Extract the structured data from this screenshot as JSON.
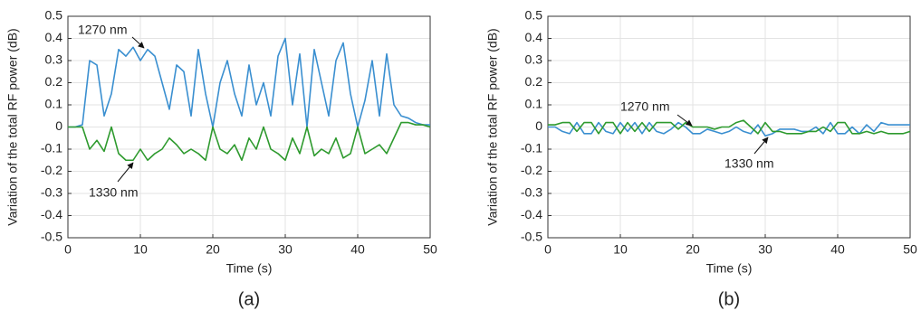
{
  "chart_data": [
    {
      "type": "line",
      "subtitle": "(a)",
      "x_label": "Time (s)",
      "y_label": "Variation of the total RF power (dB)",
      "x": [
        0,
        1,
        2,
        3,
        4,
        5,
        6,
        7,
        8,
        9,
        10,
        11,
        12,
        13,
        14,
        15,
        16,
        17,
        18,
        19,
        20,
        21,
        22,
        23,
        24,
        25,
        26,
        27,
        28,
        29,
        30,
        31,
        32,
        33,
        34,
        35,
        36,
        37,
        38,
        39,
        40,
        41,
        42,
        43,
        44,
        45,
        46,
        47,
        48,
        49,
        50
      ],
      "series": [
        {
          "color": "#3a8fd0",
          "values": [
            0,
            0,
            0.01,
            0.3,
            0.28,
            0.05,
            0.15,
            0.35,
            0.32,
            0.36,
            0.3,
            0.35,
            0.32,
            0.2,
            0.08,
            0.28,
            0.25,
            0.05,
            0.35,
            0.15,
            0.0,
            0.2,
            0.3,
            0.15,
            0.05,
            0.28,
            0.1,
            0.2,
            0.05,
            0.32,
            0.4,
            0.1,
            0.33,
            0.0,
            0.35,
            0.2,
            0.05,
            0.3,
            0.38,
            0.15,
            0.0,
            0.12,
            0.3,
            0.05,
            0.33,
            0.1,
            0.05,
            0.04,
            0.02,
            0.01,
            0.01
          ]
        },
        {
          "color": "#2e9a2e",
          "values": [
            0,
            0,
            0,
            -0.1,
            -0.06,
            -0.11,
            0.0,
            -0.12,
            -0.15,
            -0.15,
            -0.1,
            -0.15,
            -0.12,
            -0.1,
            -0.05,
            -0.08,
            -0.12,
            -0.1,
            -0.12,
            -0.15,
            0.0,
            -0.1,
            -0.12,
            -0.08,
            -0.15,
            -0.05,
            -0.1,
            0.0,
            -0.1,
            -0.12,
            -0.15,
            -0.05,
            -0.12,
            0.0,
            -0.13,
            -0.1,
            -0.12,
            -0.05,
            -0.14,
            -0.12,
            0.0,
            -0.12,
            -0.1,
            -0.08,
            -0.12,
            -0.05,
            0.02,
            0.02,
            0.01,
            0.01,
            0.0
          ]
        }
      ],
      "annotations": [
        "1270 nm",
        "1330 nm"
      ],
      "xlim": [
        0,
        50
      ],
      "xticks": [
        0,
        10,
        20,
        30,
        40,
        50
      ],
      "ylim": [
        -0.5,
        0.5
      ],
      "yticks": [
        -0.5,
        -0.4,
        -0.3,
        -0.2,
        -0.1,
        0,
        0.1,
        0.2,
        0.3,
        0.4,
        0.5
      ],
      "grid": true
    },
    {
      "type": "line",
      "subtitle": "(b)",
      "x_label": "Time (s)",
      "y_label": "Variation of the total RF power (dB)",
      "x": [
        0,
        1,
        2,
        3,
        4,
        5,
        6,
        7,
        8,
        9,
        10,
        11,
        12,
        13,
        14,
        15,
        16,
        17,
        18,
        19,
        20,
        21,
        22,
        23,
        24,
        25,
        26,
        27,
        28,
        29,
        30,
        31,
        32,
        33,
        34,
        35,
        36,
        37,
        38,
        39,
        40,
        41,
        42,
        43,
        44,
        45,
        46,
        47,
        48,
        49,
        50
      ],
      "series": [
        {
          "color": "#3a8fd0",
          "values": [
            0,
            0,
            -0.02,
            -0.03,
            0.02,
            -0.03,
            -0.03,
            0.02,
            -0.02,
            -0.03,
            0.02,
            -0.02,
            0.02,
            -0.03,
            0.02,
            -0.02,
            -0.03,
            -0.01,
            0.02,
            0.0,
            -0.03,
            -0.03,
            -0.01,
            -0.02,
            -0.03,
            -0.02,
            0.0,
            -0.02,
            -0.03,
            0.01,
            -0.04,
            -0.03,
            -0.01,
            -0.01,
            -0.01,
            -0.02,
            -0.02,
            0.0,
            -0.03,
            0.02,
            -0.03,
            -0.03,
            0.0,
            -0.03,
            0.01,
            -0.02,
            0.02,
            0.01,
            0.01,
            0.01,
            0.01
          ]
        },
        {
          "color": "#2e9a2e",
          "values": [
            0.01,
            0.01,
            0.02,
            0.02,
            -0.02,
            0.02,
            0.02,
            -0.03,
            0.02,
            0.02,
            -0.03,
            0.02,
            -0.02,
            0.02,
            -0.02,
            0.02,
            0.02,
            0.02,
            -0.01,
            0.02,
            0.0,
            0.0,
            0.0,
            -0.01,
            0.0,
            0.0,
            0.02,
            0.03,
            0.0,
            -0.03,
            0.02,
            -0.02,
            -0.02,
            -0.03,
            -0.03,
            -0.03,
            -0.02,
            -0.02,
            0.0,
            -0.02,
            0.02,
            0.02,
            -0.03,
            -0.03,
            -0.02,
            -0.03,
            -0.02,
            -0.03,
            -0.03,
            -0.03,
            -0.02
          ]
        }
      ],
      "annotations": [
        "1270 nm",
        "1330 nm"
      ],
      "xlim": [
        0,
        50
      ],
      "xticks": [
        0,
        10,
        20,
        30,
        40,
        50
      ],
      "ylim": [
        -0.5,
        0.5
      ],
      "yticks": [
        -0.5,
        -0.4,
        -0.3,
        -0.2,
        -0.1,
        0,
        0.1,
        0.2,
        0.3,
        0.4,
        0.5
      ],
      "grid": true
    }
  ]
}
